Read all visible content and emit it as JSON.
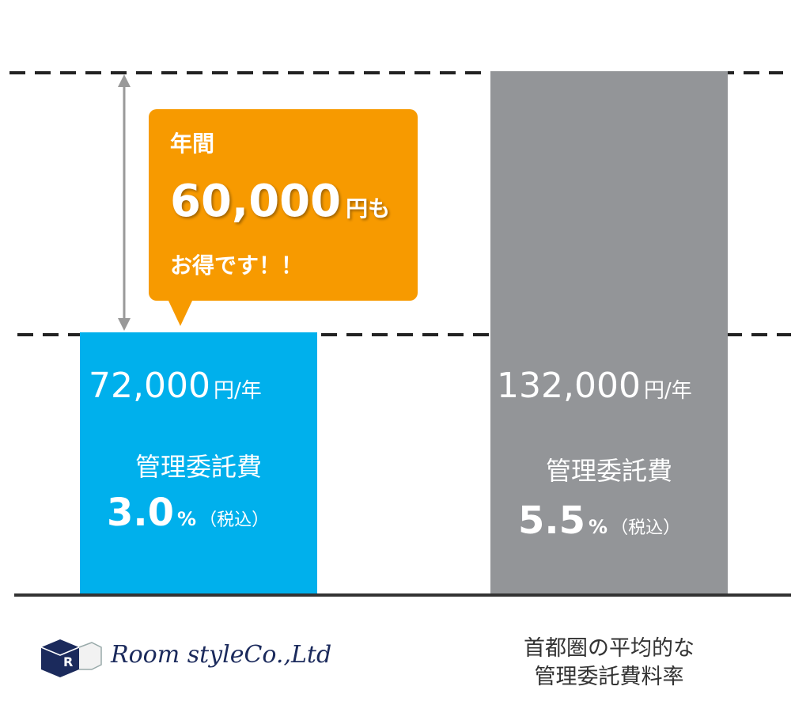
{
  "callout": {
    "line1": "年間",
    "amount": "60,000",
    "amount_suffix": "円も",
    "line3": "お得です！！"
  },
  "left_bar": {
    "amount": "72,000",
    "unit": "円/年",
    "label": "管理委託費",
    "rate": "3.0",
    "rate_unit": "%",
    "tax": "（税込）"
  },
  "right_bar": {
    "amount": "132,000",
    "unit": "円/年",
    "label": "管理委託費",
    "rate": "5.5",
    "rate_unit": "%",
    "tax": "（税込）"
  },
  "logo": {
    "text": "Room styleCo.,Ltd"
  },
  "right_caption": {
    "line1": "首都圏の平均的な",
    "line2": "管理委託費料率"
  }
}
